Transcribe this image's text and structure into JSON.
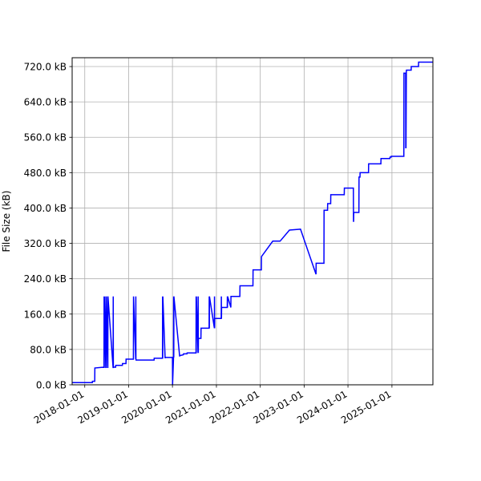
{
  "chart_data": {
    "type": "line",
    "ylabel": "File Size (kB)",
    "grid": true,
    "series_color": "#0000ff",
    "xlim": [
      "2017-09-18",
      "2025-12-08"
    ],
    "ylim": [
      0,
      740
    ],
    "x_ticks": [
      "2018-01-01",
      "2019-01-01",
      "2020-01-01",
      "2021-01-01",
      "2022-01-01",
      "2023-01-01",
      "2024-01-01",
      "2025-01-01"
    ],
    "y_ticks": [
      {
        "value": 0,
        "label": "0.0 kB"
      },
      {
        "value": 80,
        "label": "80.0 kB"
      },
      {
        "value": 160,
        "label": "160.0 kB"
      },
      {
        "value": 240,
        "label": "240.0 kB"
      },
      {
        "value": 320,
        "label": "320.0 kB"
      },
      {
        "value": 400,
        "label": "400.0 kB"
      },
      {
        "value": 480,
        "label": "480.0 kB"
      },
      {
        "value": 560,
        "label": "560.0 kB"
      },
      {
        "value": 640,
        "label": "640.0 kB"
      },
      {
        "value": 720,
        "label": "720.0 kB"
      }
    ],
    "series": [
      {
        "x": [
          "2017-09-18",
          "2018-03-05",
          "2018-03-06",
          "2018-03-25",
          "2018-03-26",
          "2018-06-10",
          "2018-06-11",
          "2018-06-12",
          "2018-06-13",
          "2018-06-25",
          "2018-06-26",
          "2018-06-27",
          "2018-06-28",
          "2018-07-10",
          "2018-07-11",
          "2018-07-12",
          "2018-07-13",
          "2018-08-25",
          "2018-08-26",
          "2018-08-27",
          "2018-08-28",
          "2018-09-15",
          "2018-09-16",
          "2018-11-10",
          "2018-11-11",
          "2018-12-10",
          "2018-12-11",
          "2019-02-10",
          "2019-02-11",
          "2019-03-01",
          "2019-03-02",
          "2019-03-03",
          "2019-03-04",
          "2019-08-01",
          "2019-08-02",
          "2019-10-10",
          "2019-10-11",
          "2019-10-12",
          "2019-10-13",
          "2019-11-01",
          "2019-11-02",
          "2020-01-01",
          "2020-01-02",
          "2020-01-10",
          "2020-01-11",
          "2020-01-12",
          "2020-01-13",
          "2020-03-01",
          "2020-03-02",
          "2020-04-01",
          "2020-04-02",
          "2020-05-01",
          "2020-05-02",
          "2020-07-15",
          "2020-07-16",
          "2020-07-17",
          "2020-07-18",
          "2020-08-01",
          "2020-08-02",
          "2020-08-03",
          "2020-08-04",
          "2020-08-25",
          "2020-08-26",
          "2020-11-01",
          "2020-11-02",
          "2020-11-03",
          "2020-11-04",
          "2020-12-15",
          "2020-12-16",
          "2020-12-17",
          "2020-12-18",
          "2021-02-10",
          "2021-02-11",
          "2021-02-12",
          "2021-02-13",
          "2021-04-01",
          "2021-04-02",
          "2021-04-03",
          "2021-04-04",
          "2021-05-01",
          "2021-05-02",
          "2021-07-15",
          "2021-07-16",
          "2021-11-01",
          "2021-11-02",
          "2022-01-10",
          "2022-01-11",
          "2022-04-15",
          "2022-06-15",
          "2022-09-01",
          "2022-12-01",
          "2022-12-02",
          "2023-04-10",
          "2023-04-11",
          "2023-04-20",
          "2023-06-15",
          "2023-06-16",
          "2023-07-15",
          "2023-07-16",
          "2023-08-10",
          "2023-08-11",
          "2023-12-01",
          "2023-12-02",
          "2024-02-15",
          "2024-02-16",
          "2024-02-17",
          "2024-02-18",
          "2024-04-01",
          "2024-04-02",
          "2024-04-10",
          "2024-04-11",
          "2024-06-20",
          "2024-06-21",
          "2024-10-01",
          "2024-10-02",
          "2024-12-15",
          "2024-12-16",
          "2024-12-25",
          "2024-12-26",
          "2025-04-10",
          "2025-04-11",
          "2025-04-25",
          "2025-04-26",
          "2025-04-27",
          "2025-04-28",
          "2025-05-01",
          "2025-05-02",
          "2025-06-10",
          "2025-06-11",
          "2025-08-10",
          "2025-08-11",
          "2025-12-08"
        ],
        "y": [
          5,
          5,
          8,
          8,
          38,
          40,
          200,
          38,
          200,
          38,
          200,
          38,
          200,
          38,
          200,
          38,
          200,
          38,
          200,
          38,
          40,
          40,
          44,
          44,
          48,
          48,
          58,
          58,
          200,
          58,
          200,
          58,
          56,
          56,
          60,
          60,
          200,
          60,
          200,
          60,
          62,
          62,
          0,
          62,
          200,
          62,
          200,
          64,
          66,
          68,
          70,
          70,
          72,
          72,
          200,
          72,
          200,
          72,
          200,
          72,
          105,
          105,
          128,
          128,
          200,
          128,
          200,
          128,
          200,
          128,
          150,
          150,
          200,
          150,
          175,
          175,
          200,
          175,
          200,
          175,
          200,
          200,
          224,
          224,
          260,
          260,
          290,
          325,
          325,
          350,
          352,
          352,
          250,
          275,
          275,
          275,
          395,
          395,
          410,
          410,
          430,
          430,
          445,
          445,
          370,
          370,
          390,
          390,
          470,
          470,
          480,
          480,
          500,
          500,
          512,
          512,
          515,
          515,
          517,
          517,
          705,
          705,
          535,
          705,
          535,
          710,
          712,
          712,
          720,
          720,
          730,
          730
        ]
      }
    ]
  }
}
